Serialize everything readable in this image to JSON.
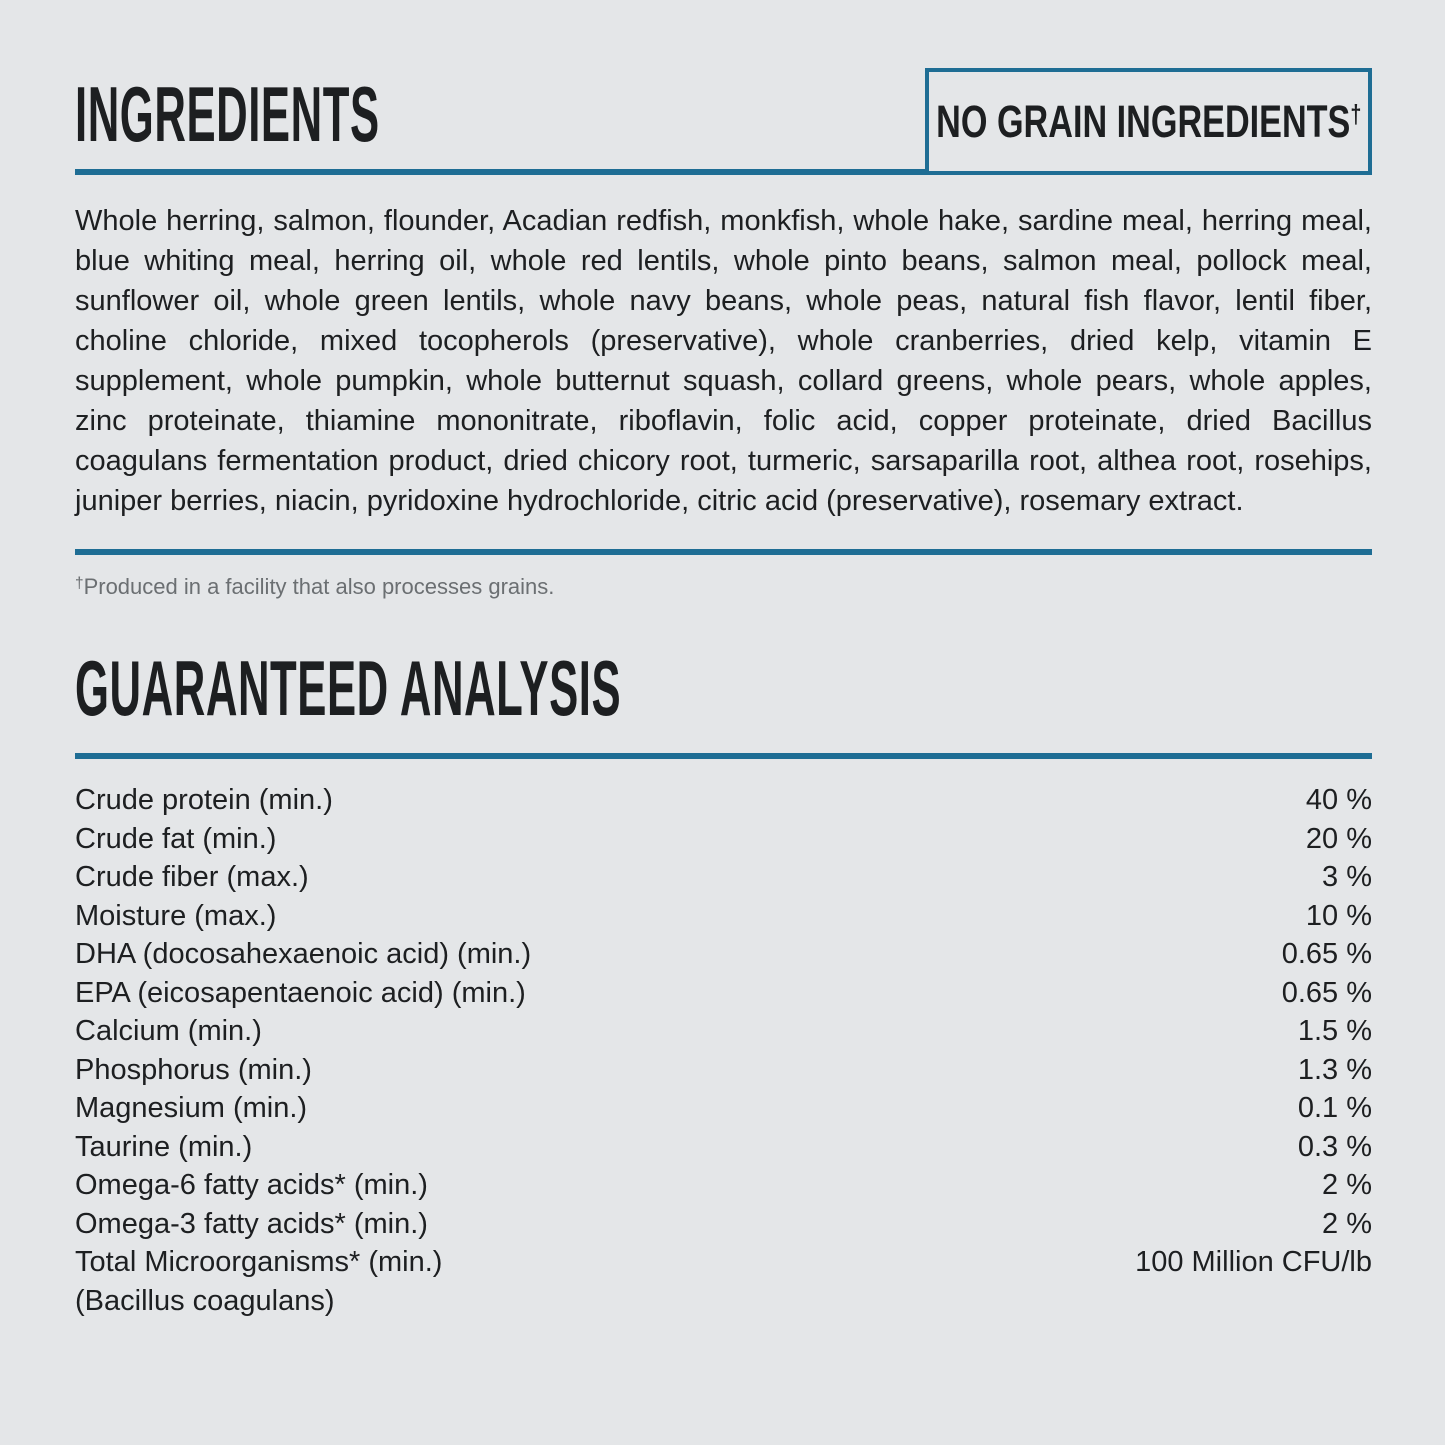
{
  "theme": {
    "background": "#e4e6e8",
    "accent": "#1e6d94",
    "text": "#1d1f21",
    "muted": "#6b6f72"
  },
  "ingredients": {
    "heading": "INGREDIENTS",
    "badge_text": "NO GRAIN INGREDIENTS",
    "badge_sup": "†",
    "body": "Whole herring, salmon, flounder, Acadian redfish, monkfish, whole hake, sardine meal, herring meal, blue whiting meal, herring oil, whole red lentils, whole pinto beans, salmon meal, pollock meal, sunflower oil, whole green lentils, whole navy beans, whole peas, natural fish flavor, lentil fiber, choline chloride, mixed tocopherols (preservative), whole cranberries, dried kelp, vitamin E supplement, whole pumpkin, whole butternut squash, collard greens, whole pears, whole apples, zinc proteinate, thiamine mononitrate, riboflavin, folic acid, copper proteinate, dried Bacillus coagulans fermentation product, dried chicory root, turmeric, sarsaparilla root, althea root, rosehips, juniper berries, niacin, pyridoxine hydrochloride, citric acid (preservative), rosemary extract.",
    "footnote_sup": "†",
    "footnote_text": "Produced in a facility that also processes grains."
  },
  "analysis": {
    "heading": "GUARANTEED ANALYSIS",
    "rows": [
      {
        "label": "Crude protein (min.)",
        "value": "40 %"
      },
      {
        "label": "Crude fat (min.)",
        "value": "20 %"
      },
      {
        "label": "Crude fiber (max.)",
        "value": "3 %"
      },
      {
        "label": "Moisture (max.)",
        "value": "10 %"
      },
      {
        "label": "DHA (docosahexaenoic acid) (min.)",
        "value": "0.65 %"
      },
      {
        "label": "EPA (eicosapentaenoic acid) (min.)",
        "value": "0.65 %"
      },
      {
        "label": "Calcium (min.)",
        "value": "1.5 %"
      },
      {
        "label": "Phosphorus (min.)",
        "value": "1.3 %"
      },
      {
        "label": "Magnesium (min.)",
        "value": "0.1 %"
      },
      {
        "label": "Taurine (min.)",
        "value": "0.3 %"
      },
      {
        "label": "Omega-6 fatty acids* (min.)",
        "value": "2 %"
      },
      {
        "label": "Omega-3 fatty acids* (min.)",
        "value": "2 %"
      },
      {
        "label": "Total Microorganisms* (min.)",
        "value": "100 Million CFU/lb"
      },
      {
        "label": "(Bacillus coagulans)",
        "value": ""
      }
    ]
  }
}
